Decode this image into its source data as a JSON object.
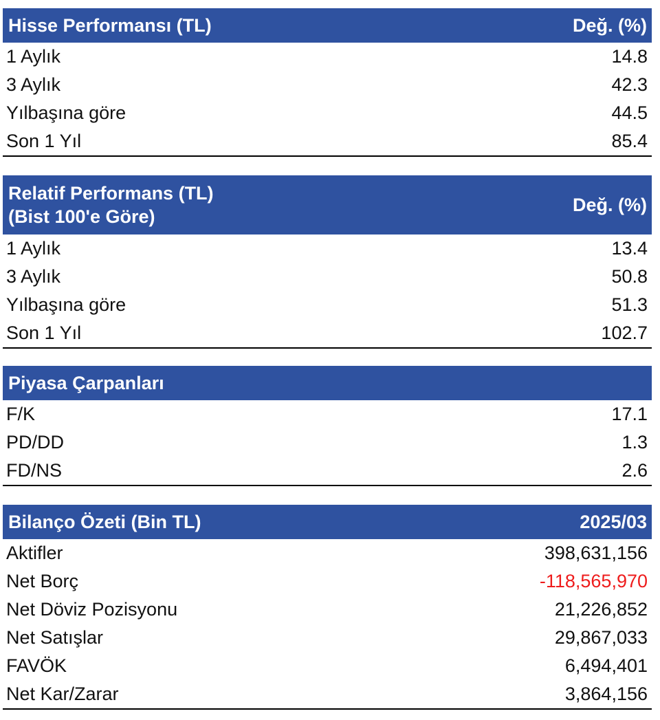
{
  "tables": [
    {
      "title_lines": [
        "Hisse Performansı (TL)"
      ],
      "value_header": "Değ. (%)",
      "rows": [
        {
          "label": "1 Aylık",
          "value": "14.8"
        },
        {
          "label": "3 Aylık",
          "value": "42.3"
        },
        {
          "label": "Yılbaşına göre",
          "value": "44.5"
        },
        {
          "label": "Son 1 Yıl",
          "value": "85.4"
        }
      ]
    },
    {
      "title_lines": [
        "Relatif Performans (TL)",
        "(Bist 100'e Göre)"
      ],
      "value_header": "Değ. (%)",
      "rows": [
        {
          "label": "1 Aylık",
          "value": "13.4"
        },
        {
          "label": "3 Aylık",
          "value": "50.8"
        },
        {
          "label": "Yılbaşına göre",
          "value": "51.3"
        },
        {
          "label": "Son 1 Yıl",
          "value": "102.7"
        }
      ]
    },
    {
      "title_lines": [
        "Piyasa Çarpanları"
      ],
      "value_header": "",
      "rows": [
        {
          "label": "F/K",
          "value": "17.1"
        },
        {
          "label": "PD/DD",
          "value": "1.3"
        },
        {
          "label": "FD/NS",
          "value": "2.6"
        }
      ]
    },
    {
      "title_lines": [
        "Bilanço Özeti (Bin TL)"
      ],
      "value_header": "2025/03",
      "rows": [
        {
          "label": "Aktifler",
          "value": "398,631,156"
        },
        {
          "label": "Net Borç",
          "value": "-118,565,970"
        },
        {
          "label": "Net Döviz Pozisyonu",
          "value": "21,226,852"
        },
        {
          "label": "Net Satışlar",
          "value": "29,867,033"
        },
        {
          "label": "FAVÖK",
          "value": "6,494,401"
        },
        {
          "label": "Net Kar/Zarar",
          "value": "3,864,156"
        }
      ]
    }
  ],
  "colors": {
    "header_bg": "#2f52a0",
    "header_text": "#ffffff",
    "negative_value": "#ee1c1c"
  }
}
